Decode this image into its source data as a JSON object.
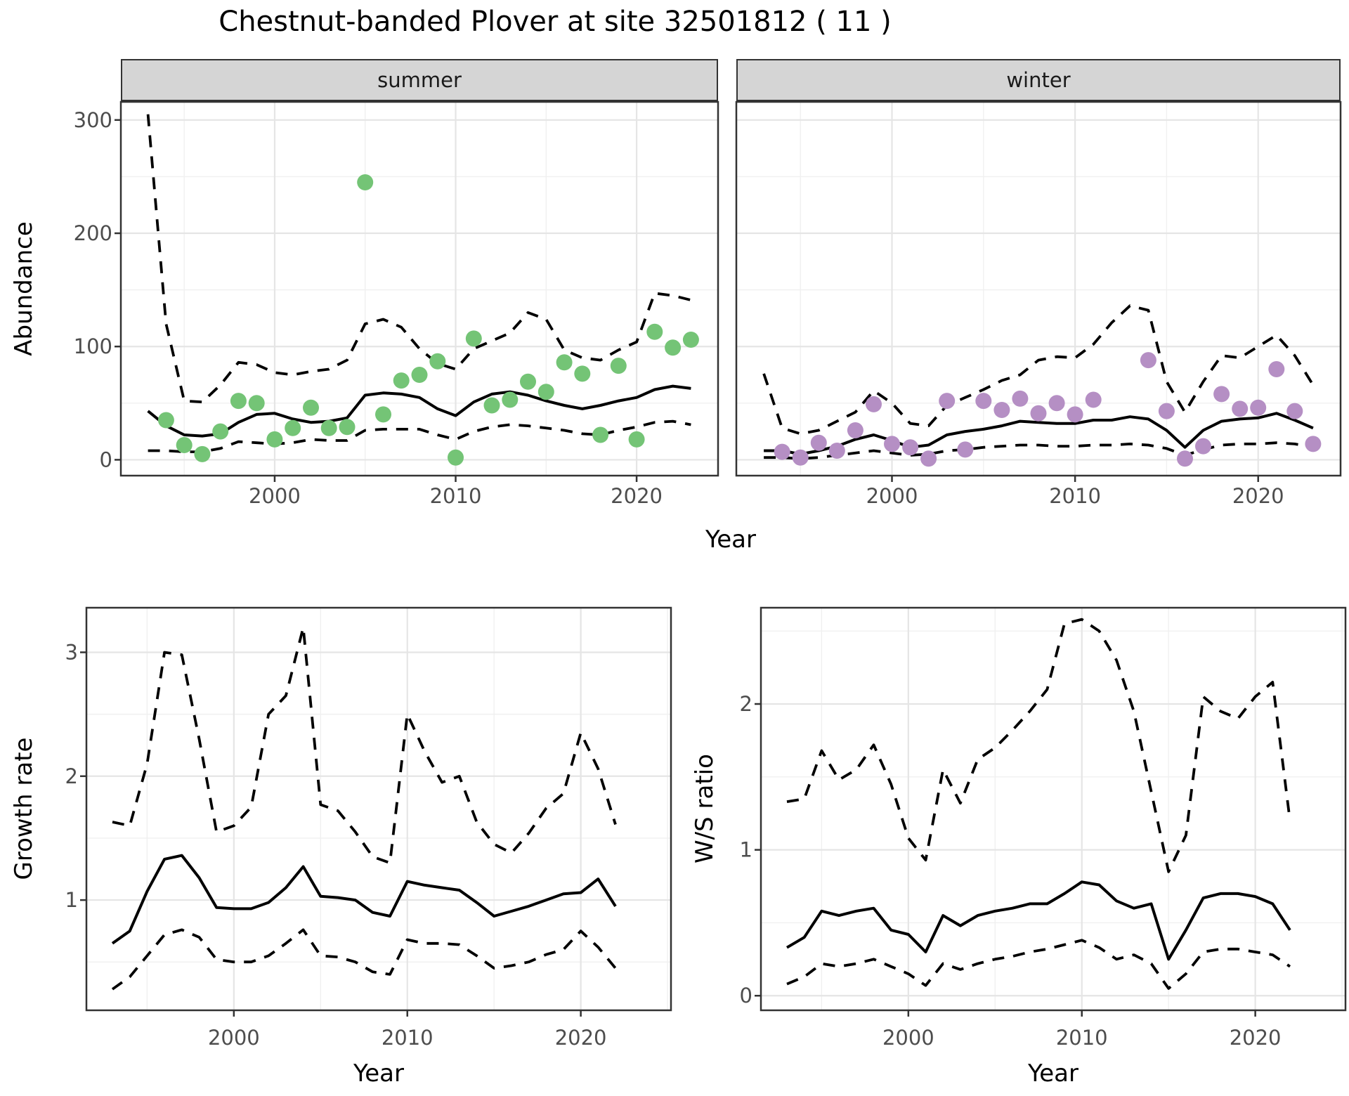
{
  "title": "Chestnut-banded Plover at site 32501812 ( 11 )",
  "facets": {
    "summer": "summer",
    "winter": "winter"
  },
  "axis_titles": {
    "y_top": "Abundance",
    "x_top": "Year",
    "y_bottom_left": "Growth rate",
    "x_bottom_left": "Year",
    "y_bottom_right": "W/S ratio",
    "x_bottom_right": "Year"
  },
  "colors": {
    "summer_point": "#74c476",
    "winter_point": "#b58fc4",
    "line": "#000000",
    "grid_major": "#e5e5e5",
    "grid_minor": "#f0f0f0",
    "panel_border": "#333333",
    "strip_bg": "#d5d5d5",
    "tick_text": "#4d4d4d"
  },
  "chart_data": [
    {
      "id": "abundance-summer",
      "type": "scatter",
      "facet": "summer",
      "xlabel": "Year",
      "ylabel": "Abundance",
      "xlim": [
        1991.5,
        2024.5
      ],
      "ylim": [
        -14,
        316
      ],
      "x_major": [
        2000,
        2010,
        2020
      ],
      "x_minor": [
        1995,
        2005,
        2015
      ],
      "y_major": [
        0,
        100,
        200,
        300
      ],
      "y_minor": [
        50,
        150,
        250
      ],
      "point_color": "#74c476",
      "points": {
        "x": [
          1994,
          1995,
          1996,
          1997,
          1998,
          1999,
          2000,
          2001,
          2002,
          2003,
          2004,
          2005,
          2006,
          2007,
          2008,
          2009,
          2010,
          2011,
          2012,
          2013,
          2014,
          2015,
          2016,
          2017,
          2018,
          2019,
          2020,
          2021,
          2022,
          2023
        ],
        "y": [
          35,
          13,
          5,
          25,
          52,
          50,
          18,
          28,
          46,
          28,
          29,
          245,
          40,
          70,
          75,
          87,
          2,
          107,
          48,
          53,
          69,
          60,
          86,
          76,
          22,
          83,
          18,
          113,
          99,
          106
        ]
      },
      "series": [
        {
          "name": "mean",
          "style": "solid",
          "x": [
            1993,
            1994,
            1995,
            1996,
            1997,
            1998,
            1999,
            2000,
            2001,
            2002,
            2003,
            2004,
            2005,
            2006,
            2007,
            2008,
            2009,
            2010,
            2011,
            2012,
            2013,
            2014,
            2015,
            2016,
            2017,
            2018,
            2019,
            2020,
            2021,
            2022,
            2023
          ],
          "y": [
            43,
            30,
            22,
            21,
            23,
            33,
            40,
            41,
            36,
            33,
            34,
            37,
            57,
            59,
            58,
            55,
            45,
            39,
            51,
            58,
            60,
            57,
            52,
            48,
            45,
            48,
            52,
            55,
            62,
            65,
            63
          ]
        },
        {
          "name": "upper_ci",
          "style": "dashed",
          "x": [
            1993,
            1994,
            1995,
            1996,
            1997,
            1998,
            1999,
            2000,
            2001,
            2002,
            2003,
            2004,
            2005,
            2006,
            2007,
            2008,
            2009,
            2010,
            2011,
            2012,
            2013,
            2014,
            2015,
            2016,
            2017,
            2018,
            2019,
            2020,
            2021,
            2022,
            2023
          ],
          "y": [
            305,
            120,
            52,
            51,
            66,
            86,
            84,
            77,
            75,
            78,
            80,
            88,
            120,
            124,
            117,
            98,
            85,
            80,
            98,
            105,
            112,
            130,
            124,
            97,
            90,
            88,
            97,
            104,
            147,
            145,
            141
          ]
        },
        {
          "name": "lower_ci",
          "style": "dashed",
          "x": [
            1993,
            1994,
            1995,
            1996,
            1997,
            1998,
            1999,
            2000,
            2001,
            2002,
            2003,
            2004,
            2005,
            2006,
            2007,
            2008,
            2009,
            2010,
            2011,
            2012,
            2013,
            2014,
            2015,
            2016,
            2017,
            2018,
            2019,
            2020,
            2021,
            2022,
            2023
          ],
          "y": [
            8,
            8,
            7,
            7,
            10,
            16,
            15,
            14,
            15,
            18,
            17,
            17,
            26,
            27,
            27,
            27,
            22,
            18,
            25,
            29,
            31,
            30,
            28,
            26,
            23,
            22,
            26,
            29,
            33,
            34,
            31
          ]
        }
      ]
    },
    {
      "id": "abundance-winter",
      "type": "scatter",
      "facet": "winter",
      "xlabel": "Year",
      "ylabel": "Abundance",
      "xlim": [
        1991.5,
        2024.5
      ],
      "ylim": [
        -14,
        316
      ],
      "x_major": [
        2000,
        2010,
        2020
      ],
      "x_minor": [
        1995,
        2005,
        2015
      ],
      "y_major": [
        0,
        100,
        200,
        300
      ],
      "y_minor": [
        50,
        150,
        250
      ],
      "point_color": "#b58fc4",
      "points": {
        "x": [
          1994,
          1995,
          1996,
          1997,
          1998,
          1999,
          2000,
          2001,
          2002,
          2003,
          2004,
          2005,
          2006,
          2007,
          2008,
          2009,
          2010,
          2011,
          2014,
          2015,
          2016,
          2017,
          2018,
          2019,
          2020,
          2021,
          2022,
          2023
        ],
        "y": [
          7,
          2,
          15,
          8,
          26,
          49,
          14,
          11,
          1,
          52,
          9,
          52,
          44,
          54,
          41,
          50,
          40,
          53,
          88,
          43,
          1,
          12,
          58,
          45,
          46,
          80,
          43,
          14
        ]
      },
      "series": [
        {
          "name": "mean",
          "style": "solid",
          "x": [
            1993,
            1994,
            1995,
            1996,
            1997,
            1998,
            1999,
            2000,
            2001,
            2002,
            2003,
            2004,
            2005,
            2006,
            2007,
            2008,
            2009,
            2010,
            2011,
            2012,
            2013,
            2014,
            2015,
            2016,
            2017,
            2018,
            2019,
            2020,
            2021,
            2022,
            2023
          ],
          "y": [
            8,
            8,
            5,
            8,
            12,
            18,
            22,
            17,
            11,
            13,
            22,
            25,
            27,
            30,
            34,
            33,
            32,
            32,
            35,
            35,
            38,
            36,
            26,
            11,
            26,
            34,
            36,
            37,
            41,
            35,
            28
          ]
        },
        {
          "name": "upper_ci",
          "style": "dashed",
          "x": [
            1993,
            1994,
            1995,
            1996,
            1997,
            1998,
            1999,
            2000,
            2001,
            2002,
            2003,
            2004,
            2005,
            2006,
            2007,
            2008,
            2009,
            2010,
            2011,
            2012,
            2013,
            2014,
            2015,
            2016,
            2017,
            2018,
            2019,
            2020,
            2021,
            2022,
            2023
          ],
          "y": [
            76,
            28,
            23,
            26,
            34,
            42,
            61,
            50,
            32,
            30,
            48,
            55,
            62,
            70,
            75,
            88,
            91,
            90,
            102,
            121,
            136,
            132,
            69,
            42,
            69,
            92,
            90,
            100,
            110,
            92,
            66
          ]
        },
        {
          "name": "lower_ci",
          "style": "dashed",
          "x": [
            1993,
            1994,
            1995,
            1996,
            1997,
            1998,
            1999,
            2000,
            2001,
            2002,
            2003,
            2004,
            2005,
            2006,
            2007,
            2008,
            2009,
            2010,
            2011,
            2012,
            2013,
            2014,
            2015,
            2016,
            2017,
            2018,
            2019,
            2020,
            2021,
            2022,
            2023
          ],
          "y": [
            2,
            2,
            1,
            2,
            4,
            6,
            8,
            6,
            4,
            5,
            8,
            9,
            11,
            12,
            13,
            13,
            12,
            12,
            13,
            13,
            14,
            13,
            10,
            4,
            9,
            13,
            14,
            14,
            15,
            14,
            11
          ]
        }
      ]
    },
    {
      "id": "growth",
      "type": "line",
      "xlabel": "Year",
      "ylabel": "Growth rate",
      "xlim": [
        1991.5,
        2025.2
      ],
      "ylim": [
        0.11,
        3.36
      ],
      "x_major": [
        2000,
        2010,
        2020
      ],
      "x_minor": [
        1995,
        2005,
        2015,
        2025
      ],
      "y_major": [
        1,
        2,
        3
      ],
      "y_minor": [
        0.5,
        1.5,
        2.5
      ],
      "series": [
        {
          "name": "mean",
          "style": "solid",
          "x": [
            1993,
            1994,
            1995,
            1996,
            1997,
            1998,
            1999,
            2000,
            2001,
            2002,
            2003,
            2004,
            2005,
            2006,
            2007,
            2008,
            2009,
            2010,
            2011,
            2012,
            2013,
            2014,
            2015,
            2016,
            2017,
            2018,
            2019,
            2020,
            2021,
            2022
          ],
          "y": [
            0.65,
            0.75,
            1.07,
            1.33,
            1.36,
            1.18,
            0.94,
            0.93,
            0.93,
            0.98,
            1.1,
            1.27,
            1.03,
            1.02,
            1.0,
            0.9,
            0.87,
            1.15,
            1.12,
            1.1,
            1.08,
            0.98,
            0.87,
            0.91,
            0.95,
            1.0,
            1.05,
            1.06,
            1.17,
            0.95
          ]
        },
        {
          "name": "upper_ci",
          "style": "dashed",
          "x": [
            1993,
            1994,
            1995,
            1996,
            1997,
            1998,
            1999,
            2000,
            2001,
            2002,
            2003,
            2004,
            2005,
            2006,
            2007,
            2008,
            2009,
            2010,
            2011,
            2012,
            2013,
            2014,
            2015,
            2016,
            2017,
            2018,
            2019,
            2020,
            2021,
            2022
          ],
          "y": [
            1.63,
            1.6,
            2.1,
            3.0,
            2.98,
            2.3,
            1.55,
            1.6,
            1.75,
            2.5,
            2.65,
            3.2,
            1.77,
            1.72,
            1.55,
            1.35,
            1.3,
            2.5,
            2.2,
            1.95,
            2.0,
            1.63,
            1.45,
            1.38,
            1.54,
            1.74,
            1.86,
            2.35,
            2.06,
            1.61
          ]
        },
        {
          "name": "lower_ci",
          "style": "dashed",
          "x": [
            1993,
            1994,
            1995,
            1996,
            1997,
            1998,
            1999,
            2000,
            2001,
            2002,
            2003,
            2004,
            2005,
            2006,
            2007,
            2008,
            2009,
            2010,
            2011,
            2012,
            2013,
            2014,
            2015,
            2016,
            2017,
            2018,
            2019,
            2020,
            2021,
            2022
          ],
          "y": [
            0.28,
            0.38,
            0.55,
            0.72,
            0.76,
            0.7,
            0.52,
            0.5,
            0.5,
            0.55,
            0.65,
            0.76,
            0.55,
            0.54,
            0.5,
            0.42,
            0.4,
            0.68,
            0.65,
            0.65,
            0.64,
            0.55,
            0.45,
            0.47,
            0.5,
            0.56,
            0.6,
            0.75,
            0.62,
            0.45
          ]
        }
      ]
    },
    {
      "id": "ws",
      "type": "line",
      "xlabel": "Year",
      "ylabel": "W/S ratio",
      "xlim": [
        1991.5,
        2025.2
      ],
      "ylim": [
        -0.1,
        2.66
      ],
      "x_major": [
        2000,
        2010,
        2020
      ],
      "x_minor": [
        1995,
        2005,
        2015,
        2025
      ],
      "y_major": [
        0,
        1,
        2
      ],
      "y_minor": [
        0.5,
        1.5,
        2.5
      ],
      "series": [
        {
          "name": "mean",
          "style": "solid",
          "x": [
            1993,
            1994,
            1995,
            1996,
            1997,
            1998,
            1999,
            2000,
            2001,
            2002,
            2003,
            2004,
            2005,
            2006,
            2007,
            2008,
            2009,
            2010,
            2011,
            2012,
            2013,
            2014,
            2015,
            2016,
            2017,
            2018,
            2019,
            2020,
            2021,
            2022
          ],
          "y": [
            0.33,
            0.4,
            0.58,
            0.55,
            0.58,
            0.6,
            0.45,
            0.42,
            0.3,
            0.55,
            0.48,
            0.55,
            0.58,
            0.6,
            0.63,
            0.63,
            0.7,
            0.78,
            0.76,
            0.65,
            0.6,
            0.63,
            0.25,
            0.45,
            0.67,
            0.7,
            0.7,
            0.68,
            0.63,
            0.45
          ]
        },
        {
          "name": "upper_ci",
          "style": "dashed",
          "x": [
            1993,
            1994,
            1995,
            1996,
            1997,
            1998,
            1999,
            2000,
            2001,
            2002,
            2003,
            2004,
            2005,
            2006,
            2007,
            2008,
            2009,
            2010,
            2011,
            2012,
            2013,
            2014,
            2015,
            2016,
            2017,
            2018,
            2019,
            2020,
            2021,
            2022
          ],
          "y": [
            1.33,
            1.35,
            1.68,
            1.48,
            1.55,
            1.72,
            1.45,
            1.08,
            0.93,
            1.55,
            1.32,
            1.62,
            1.7,
            1.82,
            1.95,
            2.1,
            2.55,
            2.58,
            2.5,
            2.3,
            1.95,
            1.4,
            0.85,
            1.1,
            2.05,
            1.95,
            1.9,
            2.05,
            2.15,
            1.2
          ]
        },
        {
          "name": "lower_ci",
          "style": "dashed",
          "x": [
            1993,
            1994,
            1995,
            1996,
            1997,
            1998,
            1999,
            2000,
            2001,
            2002,
            2003,
            2004,
            2005,
            2006,
            2007,
            2008,
            2009,
            2010,
            2011,
            2012,
            2013,
            2014,
            2015,
            2016,
            2017,
            2018,
            2019,
            2020,
            2021,
            2022
          ],
          "y": [
            0.08,
            0.13,
            0.22,
            0.2,
            0.22,
            0.25,
            0.2,
            0.15,
            0.07,
            0.22,
            0.18,
            0.22,
            0.25,
            0.27,
            0.3,
            0.32,
            0.35,
            0.38,
            0.33,
            0.25,
            0.28,
            0.22,
            0.05,
            0.15,
            0.3,
            0.32,
            0.32,
            0.3,
            0.28,
            0.2
          ]
        }
      ]
    }
  ]
}
